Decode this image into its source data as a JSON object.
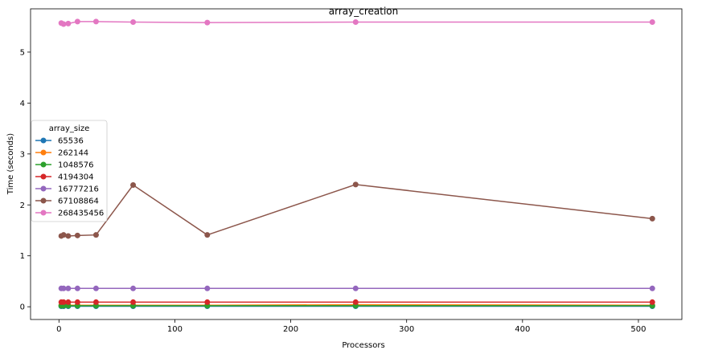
{
  "chart_data": {
    "type": "line",
    "title": "array_creation",
    "xlabel": "Processors",
    "ylabel": "Time (seconds)",
    "xlim": [
      -24.5,
      537.5
    ],
    "ylim": [
      -0.25,
      5.85
    ],
    "xticks": [
      0,
      100,
      200,
      300,
      400,
      500
    ],
    "yticks": [
      0,
      1,
      2,
      3,
      4,
      5
    ],
    "grid": false,
    "legend": {
      "title": "array_size",
      "placement": "center-left"
    },
    "x": [
      2,
      4,
      8,
      16,
      32,
      64,
      128,
      256,
      512
    ],
    "series": [
      {
        "name": "65536",
        "color": "#1f77b4",
        "values": [
          0.01,
          0.01,
          0.01,
          0.01,
          0.01,
          0.01,
          0.01,
          0.01,
          0.01
        ]
      },
      {
        "name": "262144",
        "color": "#ff7f0e",
        "values": [
          0.03,
          0.03,
          0.03,
          0.03,
          0.03,
          0.03,
          0.03,
          0.04,
          0.03
        ]
      },
      {
        "name": "1048576",
        "color": "#2ca02c",
        "values": [
          0.02,
          0.02,
          0.02,
          0.02,
          0.02,
          0.02,
          0.02,
          0.02,
          0.02
        ]
      },
      {
        "name": "4194304",
        "color": "#d62728",
        "values": [
          0.09,
          0.09,
          0.09,
          0.09,
          0.09,
          0.09,
          0.09,
          0.09,
          0.09
        ]
      },
      {
        "name": "16777216",
        "color": "#9467bd",
        "values": [
          0.36,
          0.36,
          0.36,
          0.36,
          0.36,
          0.36,
          0.36,
          0.36,
          0.36
        ]
      },
      {
        "name": "67108864",
        "color": "#8c564b",
        "values": [
          1.39,
          1.41,
          1.39,
          1.4,
          1.41,
          2.39,
          1.41,
          2.4,
          1.73
        ]
      },
      {
        "name": "268435456",
        "color": "#e377c2",
        "values": [
          5.57,
          5.55,
          5.56,
          5.6,
          5.6,
          5.59,
          5.58,
          5.59,
          5.59
        ]
      }
    ]
  }
}
